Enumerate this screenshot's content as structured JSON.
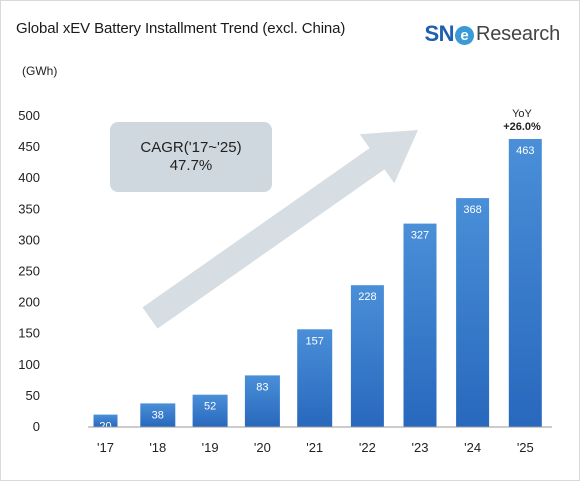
{
  "title": "Global xEV Battery Installment Trend (excl. China)",
  "unit": "(GWh)",
  "logo": {
    "sne": "SN",
    "e": "e",
    "research": "Research"
  },
  "annotation": {
    "line1": "CAGR('17~'25)",
    "line2": "47.7%"
  },
  "yoy": {
    "label": "YoY",
    "value": "+26.0%"
  },
  "colors": {
    "bar_top": "#4a8fd8",
    "bar_bottom": "#2868bd",
    "arrow": "#d6dde3",
    "axis": "#999999"
  },
  "chart_data": {
    "type": "bar",
    "categories": [
      "'17",
      "'18",
      "'19",
      "'20",
      "'21",
      "'22",
      "'23",
      "'24",
      "'25"
    ],
    "values": [
      20,
      38,
      52,
      83,
      157,
      228,
      327,
      368,
      463
    ],
    "value_labels": [
      "20",
      "38",
      "52",
      "83",
      "157",
      "228",
      "327",
      "368",
      "463"
    ],
    "yticks": [
      0,
      50,
      100,
      150,
      200,
      250,
      300,
      350,
      400,
      450,
      500
    ],
    "ylim": [
      0,
      500
    ],
    "title": "Global xEV Battery Installment Trend (excl. China)",
    "ylabel": "(GWh)",
    "xlabel": "",
    "grid": false,
    "legend": "none"
  }
}
